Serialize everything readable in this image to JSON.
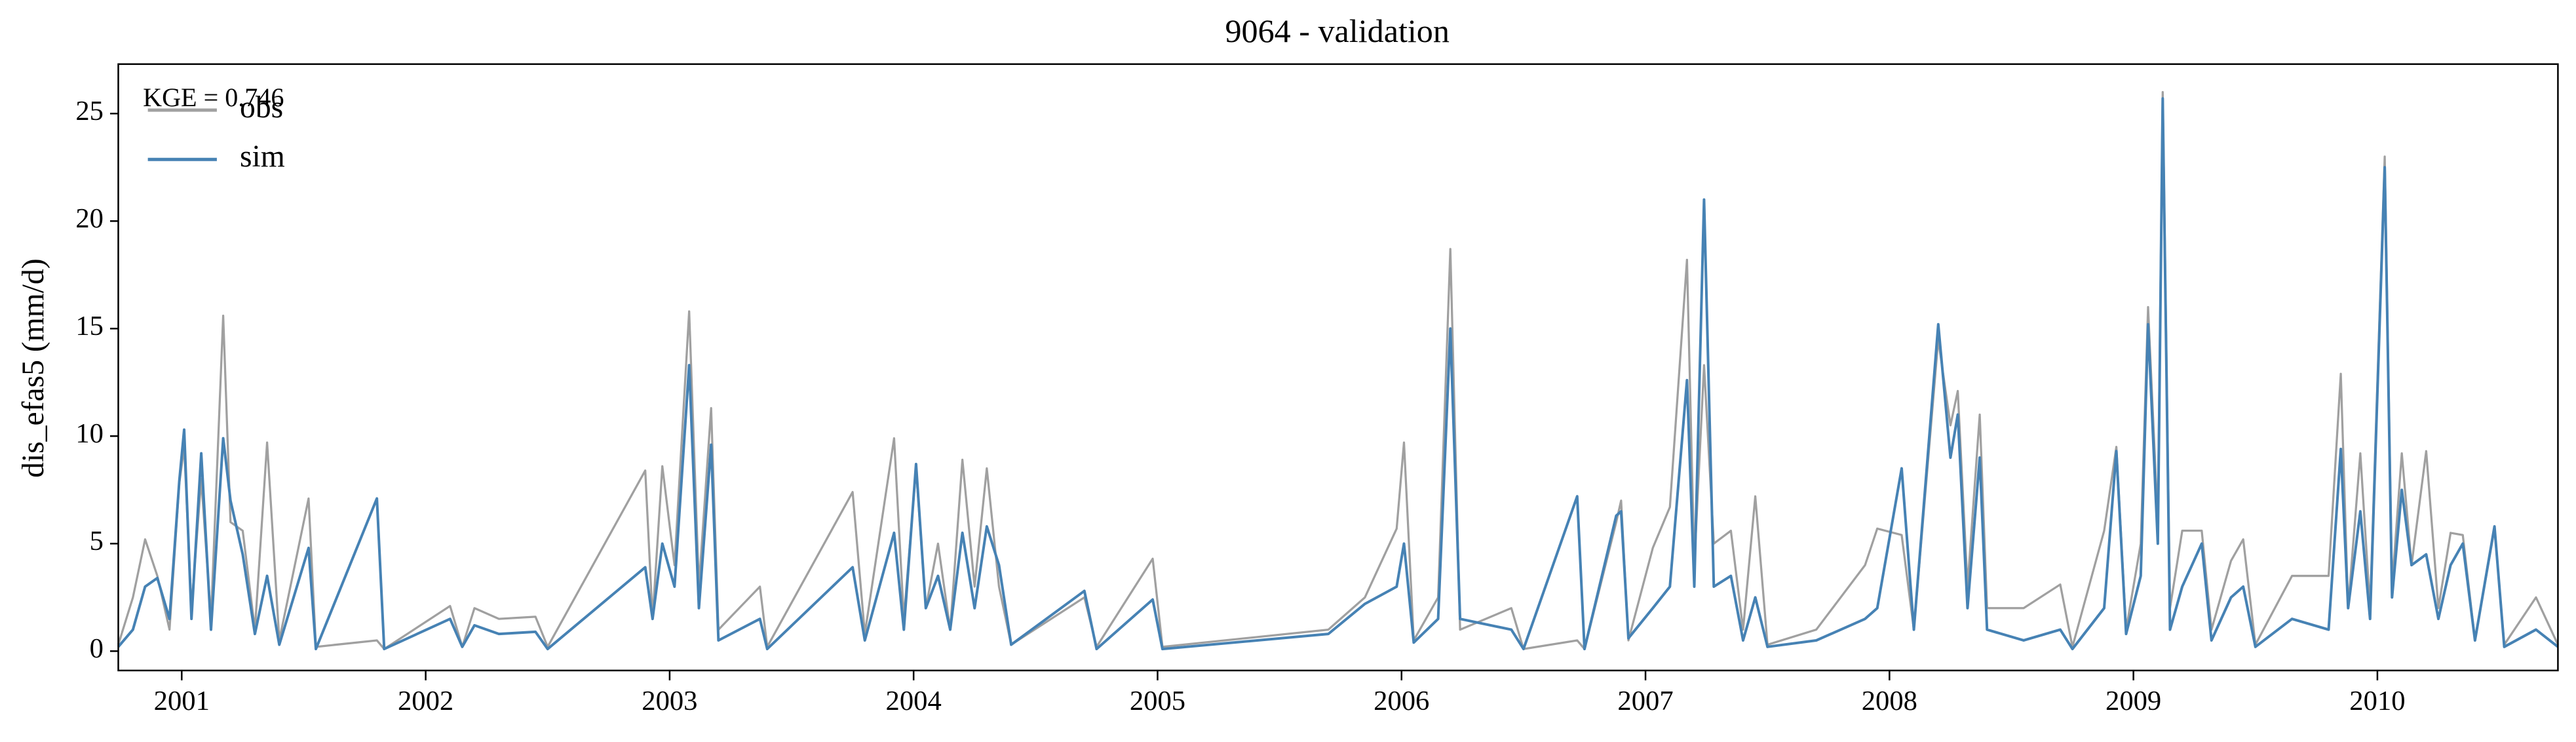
{
  "chart_data": {
    "type": "line",
    "title": "9064 - validation",
    "ylabel": "dis_efas5 (mm/d)",
    "annotation": "KGE = 0.746",
    "legend": "upper left",
    "xlim": [
      2000.74,
      2010.74
    ],
    "xticks": [
      2001,
      2002,
      2003,
      2004,
      2005,
      2006,
      2007,
      2008,
      2009,
      2010
    ],
    "ylim": [
      -0.9,
      27.3
    ],
    "yticks": [
      0,
      5,
      10,
      15,
      20,
      25
    ],
    "x": [
      2000.74,
      2000.8,
      2000.85,
      2000.9,
      2000.95,
      2000.99,
      2001.01,
      2001.04,
      2001.08,
      2001.12,
      2001.17,
      2001.2,
      2001.25,
      2001.3,
      2001.35,
      2001.4,
      2001.52,
      2001.55,
      2001.8,
      2001.83,
      2002.1,
      2002.15,
      2002.2,
      2002.3,
      2002.45,
      2002.5,
      2002.9,
      2002.93,
      2002.97,
      2003.02,
      2003.08,
      2003.12,
      2003.17,
      2003.2,
      2003.37,
      2003.4,
      2003.75,
      2003.8,
      2003.92,
      2003.96,
      2004.01,
      2004.05,
      2004.1,
      2004.15,
      2004.2,
      2004.25,
      2004.3,
      2004.35,
      2004.4,
      2004.7,
      2004.75,
      2004.98,
      2005.02,
      2005.7,
      2005.85,
      2005.98,
      2006.01,
      2006.05,
      2006.15,
      2006.2,
      2006.24,
      2006.45,
      2006.5,
      2006.72,
      2006.75,
      2006.88,
      2006.9,
      2006.93,
      2007.03,
      2007.1,
      2007.17,
      2007.2,
      2007.24,
      2007.28,
      2007.35,
      2007.4,
      2007.45,
      2007.5,
      2007.7,
      2007.9,
      2007.95,
      2008.05,
      2008.1,
      2008.2,
      2008.25,
      2008.28,
      2008.32,
      2008.37,
      2008.4,
      2008.55,
      2008.7,
      2008.75,
      2008.88,
      2008.93,
      2008.97,
      2009.03,
      2009.06,
      2009.1,
      2009.12,
      2009.15,
      2009.2,
      2009.28,
      2009.32,
      2009.4,
      2009.45,
      2009.5,
      2009.65,
      2009.8,
      2009.85,
      2009.88,
      2009.93,
      2009.97,
      2010.03,
      2010.06,
      2010.1,
      2010.14,
      2010.2,
      2010.25,
      2010.3,
      2010.35,
      2010.4,
      2010.48,
      2010.52,
      2010.65,
      2010.74
    ],
    "series": [
      {
        "name": "obs",
        "color": "#a0a0a0",
        "values": [
          0.3,
          2.5,
          5.2,
          3.5,
          1.0,
          7.8,
          9.5,
          2.0,
          8.0,
          1.5,
          15.6,
          6.0,
          5.6,
          1.0,
          9.7,
          0.5,
          7.1,
          0.2,
          0.5,
          0.1,
          2.1,
          0.2,
          2.0,
          1.5,
          1.6,
          0.2,
          8.4,
          1.5,
          8.6,
          4.0,
          15.8,
          3.0,
          11.3,
          1.0,
          3.0,
          0.2,
          7.4,
          0.8,
          9.9,
          1.5,
          8.5,
          2.0,
          5.0,
          1.0,
          8.9,
          3.0,
          8.5,
          3.0,
          0.3,
          2.5,
          0.2,
          4.3,
          0.2,
          1.0,
          2.5,
          5.7,
          9.7,
          0.5,
          2.5,
          18.7,
          1.0,
          2.0,
          0.1,
          0.5,
          0.1,
          6.0,
          7.0,
          0.5,
          4.8,
          6.7,
          18.2,
          4.0,
          13.3,
          5.0,
          5.6,
          1.0,
          7.2,
          0.3,
          1.0,
          4.0,
          5.7,
          5.4,
          1.0,
          14.5,
          10.5,
          12.1,
          3.0,
          11.0,
          2.0,
          2.0,
          3.1,
          0.2,
          5.6,
          9.5,
          1.0,
          5.0,
          16.0,
          6.0,
          26.0,
          2.0,
          5.6,
          5.6,
          1.0,
          4.2,
          5.2,
          0.3,
          3.5,
          3.5,
          12.9,
          2.0,
          9.2,
          2.0,
          23.0,
          3.0,
          9.2,
          4.0,
          9.3,
          2.0,
          5.5,
          5.4,
          0.5,
          5.7,
          0.3,
          2.5,
          0.3
        ]
      },
      {
        "name": "sim",
        "color": "#4682b4",
        "values": [
          0.2,
          1.0,
          3.0,
          3.4,
          1.5,
          7.9,
          10.3,
          1.5,
          9.2,
          1.0,
          9.9,
          7.0,
          4.5,
          0.8,
          3.5,
          0.3,
          4.8,
          0.1,
          7.1,
          0.1,
          1.5,
          0.2,
          1.2,
          0.8,
          0.9,
          0.1,
          3.9,
          1.5,
          5.0,
          3.0,
          13.3,
          2.0,
          9.6,
          0.5,
          1.5,
          0.1,
          3.9,
          0.5,
          5.5,
          1.0,
          8.7,
          2.0,
          3.5,
          1.0,
          5.5,
          2.0,
          5.8,
          4.0,
          0.3,
          2.8,
          0.1,
          2.4,
          0.1,
          0.8,
          2.2,
          3.0,
          5.0,
          0.4,
          1.5,
          15.0,
          1.5,
          1.0,
          0.1,
          7.2,
          0.1,
          6.3,
          6.5,
          0.6,
          2.0,
          3.0,
          12.6,
          3.0,
          21.0,
          3.0,
          3.5,
          0.5,
          2.5,
          0.2,
          0.5,
          1.5,
          2.0,
          8.5,
          1.0,
          15.2,
          9.0,
          11.0,
          2.0,
          9.0,
          1.0,
          0.5,
          1.0,
          0.1,
          2.0,
          9.3,
          0.8,
          3.5,
          15.2,
          5.0,
          25.7,
          1.0,
          3.0,
          5.0,
          0.5,
          2.5,
          3.0,
          0.2,
          1.5,
          1.0,
          9.4,
          2.0,
          6.5,
          1.5,
          22.5,
          2.5,
          7.5,
          4.0,
          4.5,
          1.5,
          4.0,
          5.0,
          0.5,
          5.8,
          0.2,
          1.0,
          0.2
        ]
      }
    ]
  }
}
